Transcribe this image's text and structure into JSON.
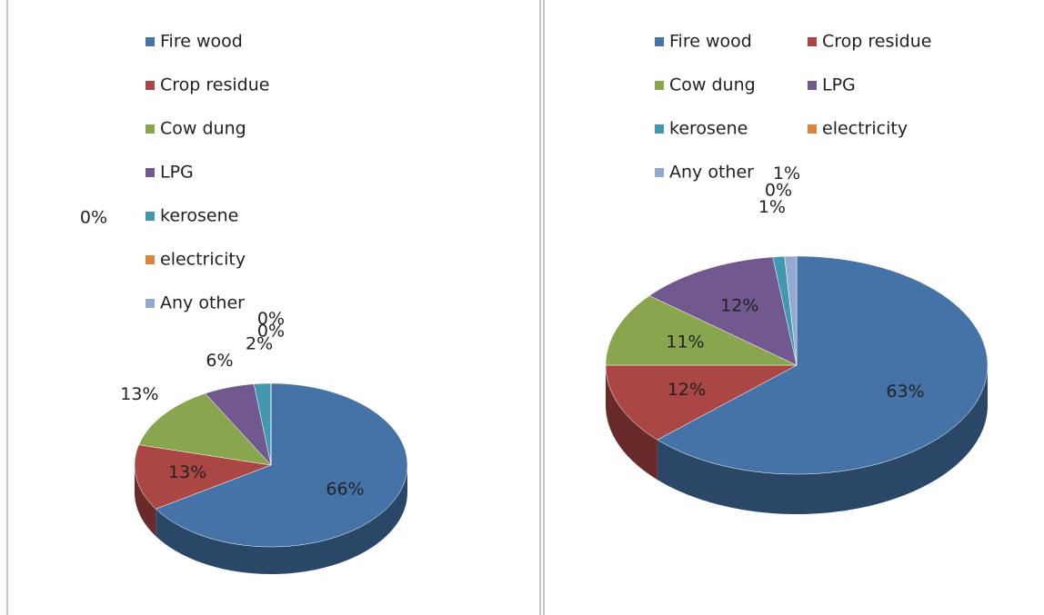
{
  "chart_data": [
    {
      "type": "pie3d",
      "categories": [
        "Fire wood",
        "Crop residue",
        "Cow dung",
        "LPG",
        "kerosene",
        "electricity",
        "Any other"
      ],
      "values": [
        66,
        13,
        13,
        6,
        2,
        0,
        0
      ],
      "value_labels": [
        "66%",
        "13%",
        "13%",
        "6%",
        "2%",
        "0%",
        "0%"
      ],
      "colors": [
        "#4572a7",
        "#aa4643",
        "#89a54e",
        "#71588f",
        "#4198af",
        "#db843d",
        "#93a9cf"
      ],
      "annotations": [
        "0%"
      ]
    },
    {
      "type": "pie3d",
      "categories": [
        "Fire wood",
        "Crop residue",
        "Cow dung",
        "LPG",
        "kerosene",
        "electricity",
        "Any other"
      ],
      "values": [
        63,
        12,
        11,
        12,
        1,
        0,
        1
      ],
      "value_labels": [
        "63%",
        "12%",
        "11%",
        "12%",
        "1%",
        "0%",
        "1%"
      ],
      "colors": [
        "#4572a7",
        "#aa4643",
        "#89a54e",
        "#71588f",
        "#4198af",
        "#db843d",
        "#93a9cf"
      ]
    }
  ]
}
